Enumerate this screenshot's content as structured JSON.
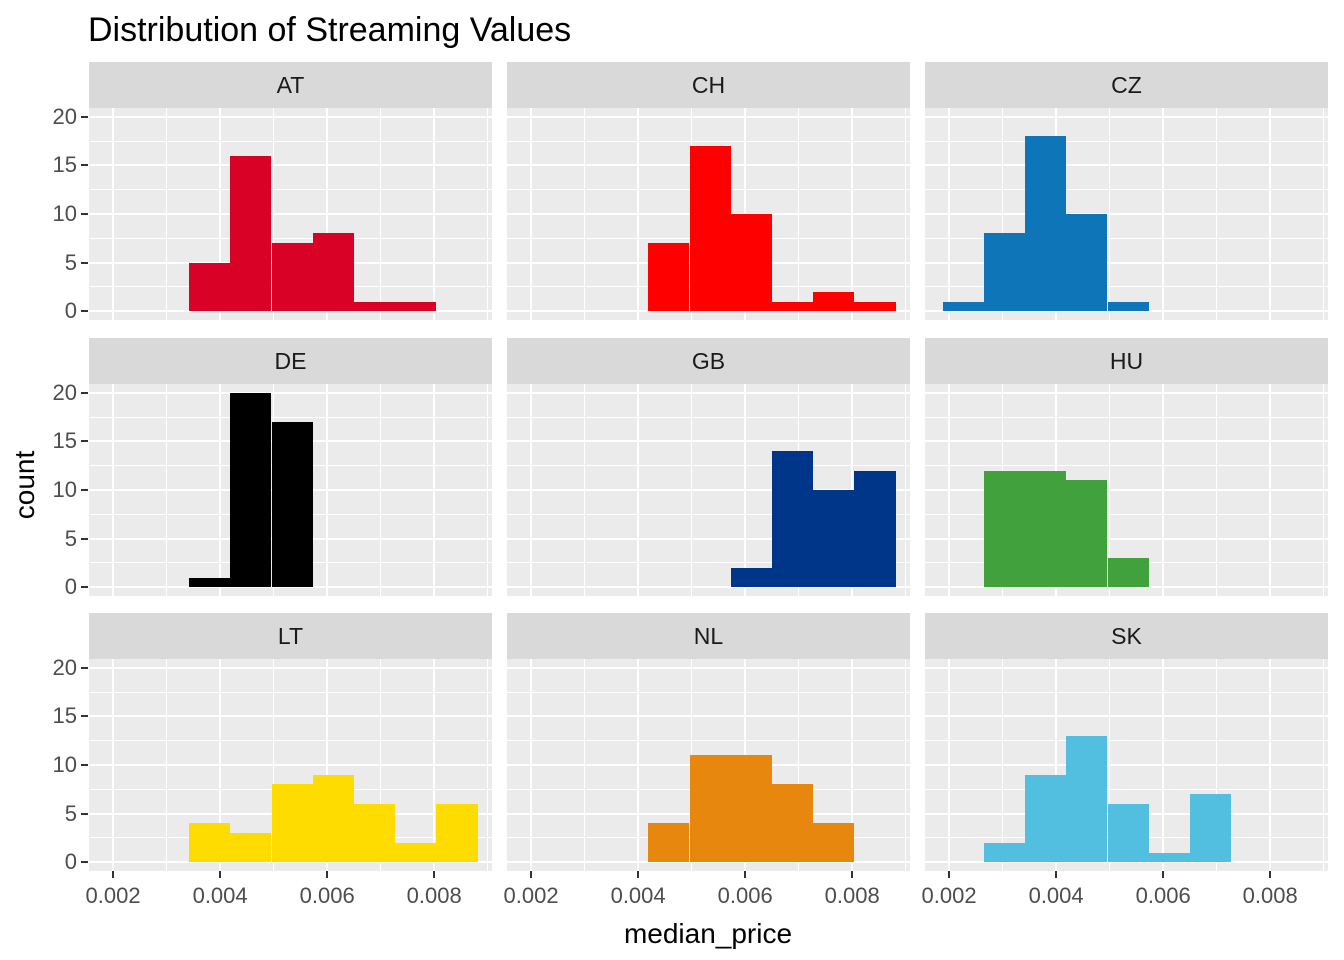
{
  "title": "Distribution of Streaming Values",
  "axes": {
    "x_label": "median_price",
    "y_label": "count",
    "x_tick_labels": [
      "0.002",
      "0.004",
      "0.006",
      "0.008"
    ],
    "x_tick_values": [
      0.002,
      0.004,
      0.006,
      0.008
    ],
    "x_minor_values": [
      0.003,
      0.005,
      0.007,
      0.009
    ],
    "y_tick_labels": [
      "0",
      "5",
      "10",
      "15",
      "20"
    ],
    "y_tick_values": [
      0,
      5,
      10,
      15,
      20
    ],
    "y_minor_values": [
      2.5,
      7.5,
      12.5,
      17.5
    ]
  },
  "colors": {
    "panel_background": "#EBEBEB",
    "strip_background": "#D9D9D9",
    "gridline": "#FFFFFF",
    "tick_label_text": "#4D4D4D",
    "strip_label_text": "#1A1A1A",
    "title_text": "#000000"
  },
  "chart_data": {
    "type": "bar",
    "subtype": "faceted_histogram",
    "title": "Distribution of Streaming Values",
    "xlabel": "median_price",
    "ylabel": "count",
    "x_range": [
      0.00155,
      0.00908
    ],
    "y_range": [
      -0.9,
      20.9
    ],
    "grid": "on",
    "legend": "none",
    "bin_width": 0.00077,
    "bin_edges": [
      0.00188,
      0.00265,
      0.00342,
      0.00419,
      0.00496,
      0.00573,
      0.0065,
      0.00727,
      0.00804,
      0.00881
    ],
    "facets": [
      {
        "label": "AT",
        "color": "#D90226",
        "bars": [
          {
            "x0": 0.00342,
            "x1": 0.00419,
            "count": 5
          },
          {
            "x0": 0.00419,
            "x1": 0.00496,
            "count": 16
          },
          {
            "x0": 0.00496,
            "x1": 0.00573,
            "count": 7
          },
          {
            "x0": 0.00573,
            "x1": 0.0065,
            "count": 8
          },
          {
            "x0": 0.0065,
            "x1": 0.00727,
            "count": 1
          },
          {
            "x0": 0.00727,
            "x1": 0.00804,
            "count": 1
          }
        ]
      },
      {
        "label": "CH",
        "color": "#FE0000",
        "bars": [
          {
            "x0": 0.00419,
            "x1": 0.00496,
            "count": 7
          },
          {
            "x0": 0.00496,
            "x1": 0.00573,
            "count": 17
          },
          {
            "x0": 0.00573,
            "x1": 0.0065,
            "count": 10
          },
          {
            "x0": 0.0065,
            "x1": 0.00727,
            "count": 1
          },
          {
            "x0": 0.00727,
            "x1": 0.00804,
            "count": 2
          },
          {
            "x0": 0.00804,
            "x1": 0.00881,
            "count": 1
          }
        ]
      },
      {
        "label": "CZ",
        "color": "#0E76B8",
        "bars": [
          {
            "x0": 0.00188,
            "x1": 0.00265,
            "count": 1
          },
          {
            "x0": 0.00265,
            "x1": 0.00342,
            "count": 8
          },
          {
            "x0": 0.00342,
            "x1": 0.00419,
            "count": 18
          },
          {
            "x0": 0.00419,
            "x1": 0.00496,
            "count": 10
          },
          {
            "x0": 0.00496,
            "x1": 0.00573,
            "count": 1
          }
        ]
      },
      {
        "label": "DE",
        "color": "#000000",
        "bars": [
          {
            "x0": 0.00342,
            "x1": 0.00419,
            "count": 1
          },
          {
            "x0": 0.00419,
            "x1": 0.00496,
            "count": 20
          },
          {
            "x0": 0.00496,
            "x1": 0.00573,
            "count": 17
          }
        ]
      },
      {
        "label": "GB",
        "color": "#003689",
        "bars": [
          {
            "x0": 0.00573,
            "x1": 0.0065,
            "count": 2
          },
          {
            "x0": 0.0065,
            "x1": 0.00727,
            "count": 14
          },
          {
            "x0": 0.00727,
            "x1": 0.00804,
            "count": 10
          },
          {
            "x0": 0.00804,
            "x1": 0.00881,
            "count": 12
          }
        ]
      },
      {
        "label": "HU",
        "color": "#41A13D",
        "bars": [
          {
            "x0": 0.00265,
            "x1": 0.00342,
            "count": 12
          },
          {
            "x0": 0.00342,
            "x1": 0.00419,
            "count": 12
          },
          {
            "x0": 0.00419,
            "x1": 0.00496,
            "count": 11
          },
          {
            "x0": 0.00496,
            "x1": 0.00573,
            "count": 3
          }
        ]
      },
      {
        "label": "LT",
        "color": "#FFDC00",
        "bars": [
          {
            "x0": 0.00342,
            "x1": 0.00419,
            "count": 4
          },
          {
            "x0": 0.00419,
            "x1": 0.00496,
            "count": 3
          },
          {
            "x0": 0.00496,
            "x1": 0.00573,
            "count": 8
          },
          {
            "x0": 0.00573,
            "x1": 0.0065,
            "count": 9
          },
          {
            "x0": 0.0065,
            "x1": 0.00727,
            "count": 6
          },
          {
            "x0": 0.00727,
            "x1": 0.00804,
            "count": 2
          },
          {
            "x0": 0.00804,
            "x1": 0.00881,
            "count": 6
          }
        ]
      },
      {
        "label": "NL",
        "color": "#E8870D",
        "bars": [
          {
            "x0": 0.00419,
            "x1": 0.00496,
            "count": 4
          },
          {
            "x0": 0.00496,
            "x1": 0.00573,
            "count": 11
          },
          {
            "x0": 0.00573,
            "x1": 0.0065,
            "count": 11
          },
          {
            "x0": 0.0065,
            "x1": 0.00727,
            "count": 8
          },
          {
            "x0": 0.00727,
            "x1": 0.00804,
            "count": 4
          }
        ]
      },
      {
        "label": "SK",
        "color": "#53BFE0",
        "bars": [
          {
            "x0": 0.00265,
            "x1": 0.00342,
            "count": 2
          },
          {
            "x0": 0.00342,
            "x1": 0.00419,
            "count": 9
          },
          {
            "x0": 0.00419,
            "x1": 0.00496,
            "count": 13
          },
          {
            "x0": 0.00496,
            "x1": 0.00573,
            "count": 6
          },
          {
            "x0": 0.00573,
            "x1": 0.0065,
            "count": 1
          },
          {
            "x0": 0.0065,
            "x1": 0.00727,
            "count": 7
          }
        ]
      }
    ]
  }
}
